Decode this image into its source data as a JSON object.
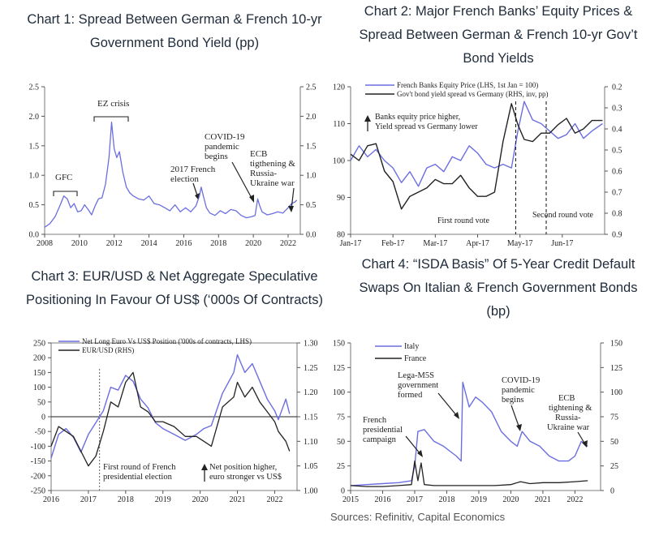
{
  "sources": "Sources: Refinitiv, Capital Economics",
  "colors": {
    "blue": "#6b6ee0",
    "black": "#222222"
  },
  "chart_data": [
    {
      "id": "c1",
      "type": "line",
      "title": "Chart 1: Spread Between German & French 10-yr Government Bond Yield (pp)",
      "title_lines": [
        "Chart 1: Spread Between German & French 10-yr",
        "Government Bond Yield (pp)"
      ],
      "xlim": [
        2008,
        2022.7
      ],
      "ylim": [
        0,
        2.5
      ],
      "xticks": [
        2008,
        2010,
        2012,
        2014,
        2016,
        2018,
        2020,
        2022
      ],
      "yticks": [
        0.0,
        0.5,
        1.0,
        1.5,
        2.0,
        2.5
      ],
      "ytick_labels": [
        "0.0",
        "0.5",
        "1.0",
        "1.5",
        "2.0",
        "2.5"
      ],
      "series": [
        {
          "name": "Spread",
          "color": "#6b6ee0",
          "x": [
            2008.0,
            2008.3,
            2008.6,
            2008.9,
            2009.1,
            2009.3,
            2009.5,
            2009.7,
            2009.9,
            2010.1,
            2010.3,
            2010.5,
            2010.7,
            2010.9,
            2011.1,
            2011.3,
            2011.5,
            2011.7,
            2011.85,
            2011.95,
            2012.0,
            2012.15,
            2012.3,
            2012.5,
            2012.7,
            2012.9,
            2013.1,
            2013.4,
            2013.7,
            2014.0,
            2014.3,
            2014.6,
            2014.9,
            2015.2,
            2015.5,
            2015.8,
            2016.1,
            2016.4,
            2016.7,
            2016.9,
            2017.0,
            2017.15,
            2017.3,
            2017.5,
            2017.8,
            2018.1,
            2018.4,
            2018.7,
            2019.0,
            2019.3,
            2019.6,
            2019.9,
            2020.1,
            2020.25,
            2020.35,
            2020.5,
            2020.8,
            2021.1,
            2021.4,
            2021.7,
            2022.0,
            2022.2,
            2022.4,
            2022.5
          ],
          "y": [
            0.12,
            0.18,
            0.3,
            0.5,
            0.65,
            0.6,
            0.45,
            0.52,
            0.38,
            0.4,
            0.5,
            0.42,
            0.33,
            0.48,
            0.6,
            0.62,
            0.85,
            1.3,
            1.9,
            1.6,
            1.45,
            1.3,
            1.4,
            1.05,
            0.8,
            0.7,
            0.65,
            0.6,
            0.58,
            0.65,
            0.52,
            0.5,
            0.45,
            0.4,
            0.5,
            0.38,
            0.45,
            0.38,
            0.48,
            0.65,
            0.8,
            0.62,
            0.45,
            0.36,
            0.32,
            0.4,
            0.35,
            0.42,
            0.4,
            0.32,
            0.28,
            0.3,
            0.32,
            0.6,
            0.5,
            0.38,
            0.33,
            0.35,
            0.38,
            0.36,
            0.45,
            0.52,
            0.55,
            0.58
          ]
        }
      ],
      "annotations": [
        "GFC",
        "EZ crisis",
        "2017 French election",
        "COVID-19 pandemic begins",
        "ECB tigthening & Russia-Ukraine war"
      ]
    },
    {
      "id": "c2",
      "type": "line",
      "title": "Chart 2: Major French Banks' Equity Prices & Spread Between German & French 10-yr Gov't Bond Yields",
      "title_lines": [
        "Chart 2: Major French Banks’ Equity Prices &",
        "Spread Between German & French 10-yr Gov’t",
        "Bond Yields"
      ],
      "x_categories": [
        "Jan-17",
        "Feb-17",
        "Mar-17",
        "Apr-17",
        "May-17",
        "Jun-17"
      ],
      "ylim_left": [
        80,
        120
      ],
      "yticks_left": [
        80,
        90,
        100,
        110,
        120
      ],
      "ylim_right": [
        0.9,
        0.2
      ],
      "yticks_right": [
        0.2,
        0.3,
        0.4,
        0.5,
        0.6,
        0.7,
        0.8,
        0.9
      ],
      "series": [
        {
          "name": "French Banks Equity Price (LHS, 1st Jan = 100)",
          "axis": "left",
          "color": "#6b6ee0",
          "x": [
            0,
            0.2,
            0.4,
            0.6,
            0.8,
            1.0,
            1.2,
            1.4,
            1.6,
            1.8,
            2.0,
            2.2,
            2.4,
            2.6,
            2.8,
            3.0,
            3.2,
            3.4,
            3.6,
            3.8,
            3.95,
            4.1,
            4.3,
            4.5,
            4.7,
            4.9,
            5.1,
            5.3,
            5.5,
            5.7,
            5.95
          ],
          "y": [
            100,
            104,
            101,
            103,
            100,
            98,
            94,
            97,
            93,
            98,
            99,
            97,
            101,
            100,
            104,
            102,
            99,
            98,
            99,
            98,
            108,
            116,
            111,
            110,
            108,
            106,
            107,
            110,
            106,
            108,
            110
          ]
        },
        {
          "name": "Gov't bond yield spread vs Germany (RHS, inv, pp)",
          "axis": "right",
          "color": "#222222",
          "x": [
            0,
            0.2,
            0.4,
            0.6,
            0.8,
            1.0,
            1.2,
            1.4,
            1.6,
            1.8,
            2.0,
            2.2,
            2.4,
            2.6,
            2.8,
            3.0,
            3.2,
            3.4,
            3.6,
            3.8,
            3.95,
            4.1,
            4.3,
            4.5,
            4.7,
            4.9,
            5.1,
            5.3,
            5.5,
            5.7,
            5.95
          ],
          "y": [
            0.52,
            0.55,
            0.48,
            0.47,
            0.6,
            0.65,
            0.78,
            0.72,
            0.7,
            0.68,
            0.64,
            0.66,
            0.66,
            0.62,
            0.68,
            0.72,
            0.72,
            0.7,
            0.46,
            0.28,
            0.38,
            0.45,
            0.46,
            0.42,
            0.42,
            0.38,
            0.35,
            0.42,
            0.4,
            0.36,
            0.36
          ]
        }
      ],
      "annotations": [
        "Banks equity price higher, Yield spread vs Germany lower",
        "First round vote",
        "Second round vote"
      ]
    },
    {
      "id": "c3",
      "type": "line",
      "title": "Chart 3: EUR/USD & Net Aggregate Speculative Positioning In Favour Of US$ ('000s Of Contracts)",
      "title_lines": [
        "Chart 3: EUR/USD & Net Aggregate Speculative",
        "Positioning In Favour Of US$ (‘000s Of Contracts)"
      ],
      "xlim": [
        2016,
        2022.6
      ],
      "xticks": [
        2016,
        2017,
        2018,
        2019,
        2020,
        2021,
        2022
      ],
      "ylim_left": [
        -250,
        250
      ],
      "yticks_left": [
        -250,
        -200,
        -150,
        -100,
        -50,
        0,
        50,
        100,
        150,
        200,
        250
      ],
      "ylim_right": [
        1.0,
        1.3
      ],
      "yticks_right": [
        1.0,
        1.05,
        1.1,
        1.15,
        1.2,
        1.25,
        1.3
      ],
      "ytick_labels_right": [
        "1.00",
        "1.05",
        "1.10",
        "1.15",
        "1.20",
        "1.25",
        "1.30"
      ],
      "series": [
        {
          "name": "Net Long Euro Vs US$ Position ('000s of contracts, LHS)",
          "axis": "left",
          "color": "#6b6ee0",
          "x": [
            2016.0,
            2016.2,
            2016.4,
            2016.6,
            2016.8,
            2017.0,
            2017.2,
            2017.4,
            2017.6,
            2017.8,
            2018.0,
            2018.2,
            2018.4,
            2018.6,
            2018.8,
            2019.0,
            2019.3,
            2019.6,
            2019.9,
            2020.1,
            2020.3,
            2020.6,
            2020.9,
            2021.0,
            2021.2,
            2021.4,
            2021.6,
            2021.8,
            2022.0,
            2022.1,
            2022.3,
            2022.4
          ],
          "y": [
            -140,
            -60,
            -40,
            -70,
            -120,
            -60,
            -20,
            20,
            100,
            90,
            140,
            120,
            60,
            30,
            -20,
            -40,
            -60,
            -80,
            -60,
            -40,
            -30,
            80,
            150,
            210,
            150,
            180,
            120,
            60,
            20,
            -10,
            60,
            10
          ]
        },
        {
          "name": "EUR/USD (RHS)",
          "axis": "right",
          "color": "#222222",
          "x": [
            2016.0,
            2016.2,
            2016.4,
            2016.6,
            2016.8,
            2017.0,
            2017.2,
            2017.4,
            2017.6,
            2017.8,
            2018.0,
            2018.2,
            2018.4,
            2018.6,
            2018.8,
            2019.0,
            2019.3,
            2019.6,
            2019.9,
            2020.1,
            2020.3,
            2020.6,
            2020.9,
            2021.0,
            2021.2,
            2021.4,
            2021.6,
            2021.8,
            2022.0,
            2022.1,
            2022.3,
            2022.4
          ],
          "y": [
            1.09,
            1.13,
            1.12,
            1.11,
            1.08,
            1.05,
            1.07,
            1.12,
            1.18,
            1.17,
            1.22,
            1.24,
            1.17,
            1.16,
            1.14,
            1.14,
            1.13,
            1.11,
            1.11,
            1.1,
            1.09,
            1.17,
            1.19,
            1.22,
            1.19,
            1.21,
            1.18,
            1.16,
            1.14,
            1.12,
            1.1,
            1.08
          ]
        }
      ],
      "annotations": [
        "First round of French presidential election",
        "Net position higher, euro stronger vs US$"
      ]
    },
    {
      "id": "c4",
      "type": "line",
      "title": "Chart 4: \"ISDA Basis\" Of 5-Year Credit Default Swaps On Italian & French Government Bonds (bp)",
      "title_lines": [
        "Chart 4: “ISDA Basis” Of 5-Year Credit Default",
        "Swaps On Italian & French Government Bonds",
        "(bp)"
      ],
      "xlim": [
        2015,
        2022.8
      ],
      "xticks": [
        2015,
        2016,
        2017,
        2018,
        2019,
        2020,
        2021,
        2022
      ],
      "ylim": [
        0,
        150
      ],
      "yticks": [
        0,
        25,
        50,
        75,
        100,
        125,
        150
      ],
      "series": [
        {
          "name": "Italy",
          "color": "#6b6ee0",
          "x": [
            2015.0,
            2015.5,
            2016.0,
            2016.5,
            2016.9,
            2017.0,
            2017.1,
            2017.3,
            2017.6,
            2017.9,
            2018.1,
            2018.3,
            2018.45,
            2018.5,
            2018.7,
            2018.9,
            2019.1,
            2019.4,
            2019.7,
            2020.0,
            2020.2,
            2020.35,
            2020.6,
            2020.9,
            2021.2,
            2021.5,
            2021.8,
            2022.0,
            2022.2,
            2022.4
          ],
          "y": [
            5,
            6,
            7,
            8,
            10,
            25,
            60,
            62,
            50,
            45,
            40,
            35,
            30,
            110,
            85,
            95,
            90,
            80,
            60,
            50,
            45,
            60,
            50,
            45,
            35,
            30,
            30,
            35,
            50,
            45
          ]
        },
        {
          "name": "France",
          "color": "#222222",
          "x": [
            2015.0,
            2015.5,
            2016.0,
            2016.5,
            2016.9,
            2017.0,
            2017.1,
            2017.2,
            2017.3,
            2017.6,
            2018.0,
            2018.5,
            2019.0,
            2019.5,
            2020.0,
            2020.3,
            2020.6,
            2021.0,
            2021.5,
            2022.0,
            2022.4
          ],
          "y": [
            5,
            4,
            4,
            5,
            6,
            30,
            10,
            28,
            6,
            5,
            5,
            5,
            5,
            5,
            6,
            9,
            7,
            8,
            8,
            9,
            10
          ]
        }
      ],
      "annotations": [
        "French presidential campaign",
        "Lega-M5S government formed",
        "COVID-19 pandemic begins",
        "ECB tightening & Russia-Ukraine war"
      ]
    }
  ]
}
